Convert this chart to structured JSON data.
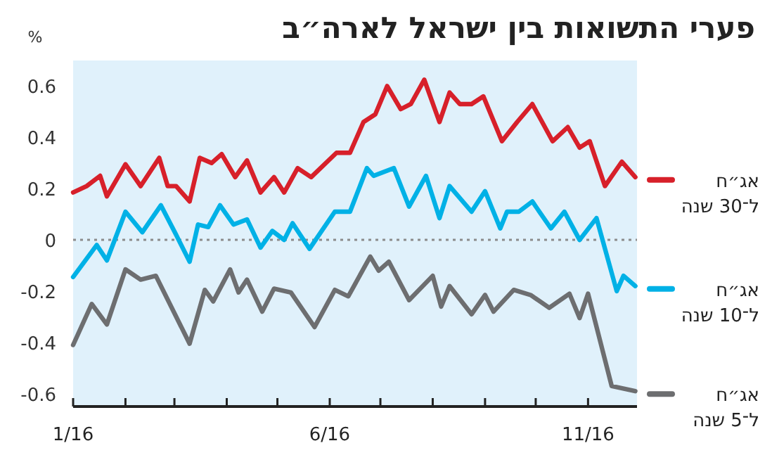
{
  "chart_data": {
    "type": "line",
    "title": "פערי התשואות בין ישראל לארה״ב",
    "ylabel": "%",
    "xlim": [
      "2016-01-01",
      "2016-11-30"
    ],
    "xticks": [
      {
        "value": "2016-01-01",
        "label": "1/16"
      },
      {
        "value": "2016-02-01",
        "label": null
      },
      {
        "value": "2016-03-01",
        "label": null
      },
      {
        "value": "2016-04-01",
        "label": null
      },
      {
        "value": "2016-05-01",
        "label": null
      },
      {
        "value": "2016-06-01",
        "label": "6/16"
      },
      {
        "value": "2016-07-01",
        "label": null
      },
      {
        "value": "2016-08-01",
        "label": null
      },
      {
        "value": "2016-09-01",
        "label": null
      },
      {
        "value": "2016-10-01",
        "label": null
      },
      {
        "value": "2016-11-01",
        "label": "11/16"
      }
    ],
    "ylim": [
      -0.65,
      0.7
    ],
    "yticks": [
      {
        "value": 0.6,
        "label": "0.6"
      },
      {
        "value": 0.4,
        "label": "0.4"
      },
      {
        "value": 0.2,
        "label": "0.2"
      },
      0,
      {
        "value": -0.2,
        "label": "-0.2"
      },
      {
        "value": -0.4,
        "label": "-0.4"
      },
      {
        "value": -0.6,
        "label": "-0.6"
      }
    ],
    "grid": false,
    "legend": "right",
    "marker": "none",
    "line_style": "solid",
    "ref_lines": [
      {
        "axis": "y",
        "value": 0,
        "color": "#8c8c8c",
        "line_style": "dotted"
      }
    ],
    "series": [
      {
        "name": "אג״ח ל־30 שנה",
        "color": "#d7202a",
        "x": [
          "2016-01-01",
          "2016-01-09",
          "2016-01-17",
          "2016-01-21",
          "2016-02-01",
          "2016-02-10",
          "2016-02-21",
          "2016-02-26",
          "2016-03-02",
          "2016-03-10",
          "2016-03-16",
          "2016-03-23",
          "2016-03-29",
          "2016-04-06",
          "2016-04-13",
          "2016-04-21",
          "2016-04-29",
          "2016-05-05",
          "2016-05-13",
          "2016-05-21",
          "2016-06-05",
          "2016-06-13",
          "2016-06-21",
          "2016-06-28",
          "2016-07-05",
          "2016-07-13",
          "2016-07-19",
          "2016-07-27",
          "2016-08-05",
          "2016-08-11",
          "2016-08-17",
          "2016-08-24",
          "2016-08-31",
          "2016-09-11",
          "2016-09-20",
          "2016-09-29",
          "2016-10-11",
          "2016-10-20",
          "2016-10-27",
          "2016-11-02",
          "2016-11-11",
          "2016-11-21",
          "2016-11-29"
        ],
        "values": [
          0.185,
          0.21,
          0.25,
          0.17,
          0.295,
          0.21,
          0.32,
          0.21,
          0.21,
          0.15,
          0.32,
          0.3,
          0.335,
          0.245,
          0.31,
          0.185,
          0.245,
          0.185,
          0.28,
          0.245,
          0.34,
          0.34,
          0.46,
          0.49,
          0.6,
          0.51,
          0.53,
          0.625,
          0.46,
          0.575,
          0.53,
          0.53,
          0.56,
          0.385,
          0.46,
          0.53,
          0.385,
          0.44,
          0.36,
          0.385,
          0.21,
          0.305,
          0.245
        ]
      },
      {
        "name": "אג״ח ל־10 שנה",
        "color": "#00b1e6",
        "x": [
          "2016-01-01",
          "2016-01-15",
          "2016-01-21",
          "2016-02-01",
          "2016-02-11",
          "2016-02-22",
          "2016-03-02",
          "2016-03-10",
          "2016-03-15",
          "2016-03-21",
          "2016-03-28",
          "2016-04-05",
          "2016-04-13",
          "2016-04-21",
          "2016-04-28",
          "2016-05-05",
          "2016-05-10",
          "2016-05-20",
          "2016-06-04",
          "2016-06-13",
          "2016-06-23",
          "2016-06-27",
          "2016-07-09",
          "2016-07-18",
          "2016-07-28",
          "2016-08-05",
          "2016-08-11",
          "2016-08-24",
          "2016-09-01",
          "2016-09-10",
          "2016-09-14",
          "2016-09-21",
          "2016-09-29",
          "2016-10-10",
          "2016-10-18",
          "2016-10-27",
          "2016-11-06",
          "2016-11-18",
          "2016-11-22",
          "2016-11-29"
        ],
        "values": [
          -0.145,
          -0.02,
          -0.08,
          0.11,
          0.03,
          0.135,
          0.02,
          -0.085,
          0.06,
          0.05,
          0.135,
          0.06,
          0.08,
          -0.03,
          0.035,
          0,
          0.065,
          -0.035,
          0.11,
          0.11,
          0.28,
          0.25,
          0.28,
          0.13,
          0.25,
          0.085,
          0.21,
          0.11,
          0.19,
          0.045,
          0.11,
          0.11,
          0.15,
          0.045,
          0.11,
          0,
          0.085,
          -0.2,
          -0.14,
          -0.18
        ]
      },
      {
        "name": "אג״ח ל־5 שנה",
        "color": "#6d6e70",
        "x": [
          "2016-01-01",
          "2016-01-12",
          "2016-01-21",
          "2016-02-01",
          "2016-02-10",
          "2016-02-19",
          "2016-03-10",
          "2016-03-19",
          "2016-03-24",
          "2016-04-03",
          "2016-04-08",
          "2016-04-13",
          "2016-04-22",
          "2016-04-29",
          "2016-05-09",
          "2016-05-23",
          "2016-06-04",
          "2016-06-12",
          "2016-06-25",
          "2016-06-30",
          "2016-07-06",
          "2016-07-18",
          "2016-08-01",
          "2016-08-06",
          "2016-08-11",
          "2016-08-24",
          "2016-09-01",
          "2016-09-06",
          "2016-09-18",
          "2016-09-28",
          "2016-10-09",
          "2016-10-21",
          "2016-10-27",
          "2016-11-01",
          "2016-11-15",
          "2016-11-29"
        ],
        "values": [
          -0.41,
          -0.25,
          -0.33,
          -0.115,
          -0.155,
          -0.14,
          -0.405,
          -0.195,
          -0.24,
          -0.115,
          -0.205,
          -0.155,
          -0.28,
          -0.19,
          -0.205,
          -0.34,
          -0.195,
          -0.22,
          -0.065,
          -0.12,
          -0.085,
          -0.235,
          -0.14,
          -0.26,
          -0.18,
          -0.29,
          -0.215,
          -0.28,
          -0.195,
          -0.215,
          -0.265,
          -0.21,
          -0.305,
          -0.21,
          -0.57,
          -0.59
        ]
      }
    ]
  }
}
